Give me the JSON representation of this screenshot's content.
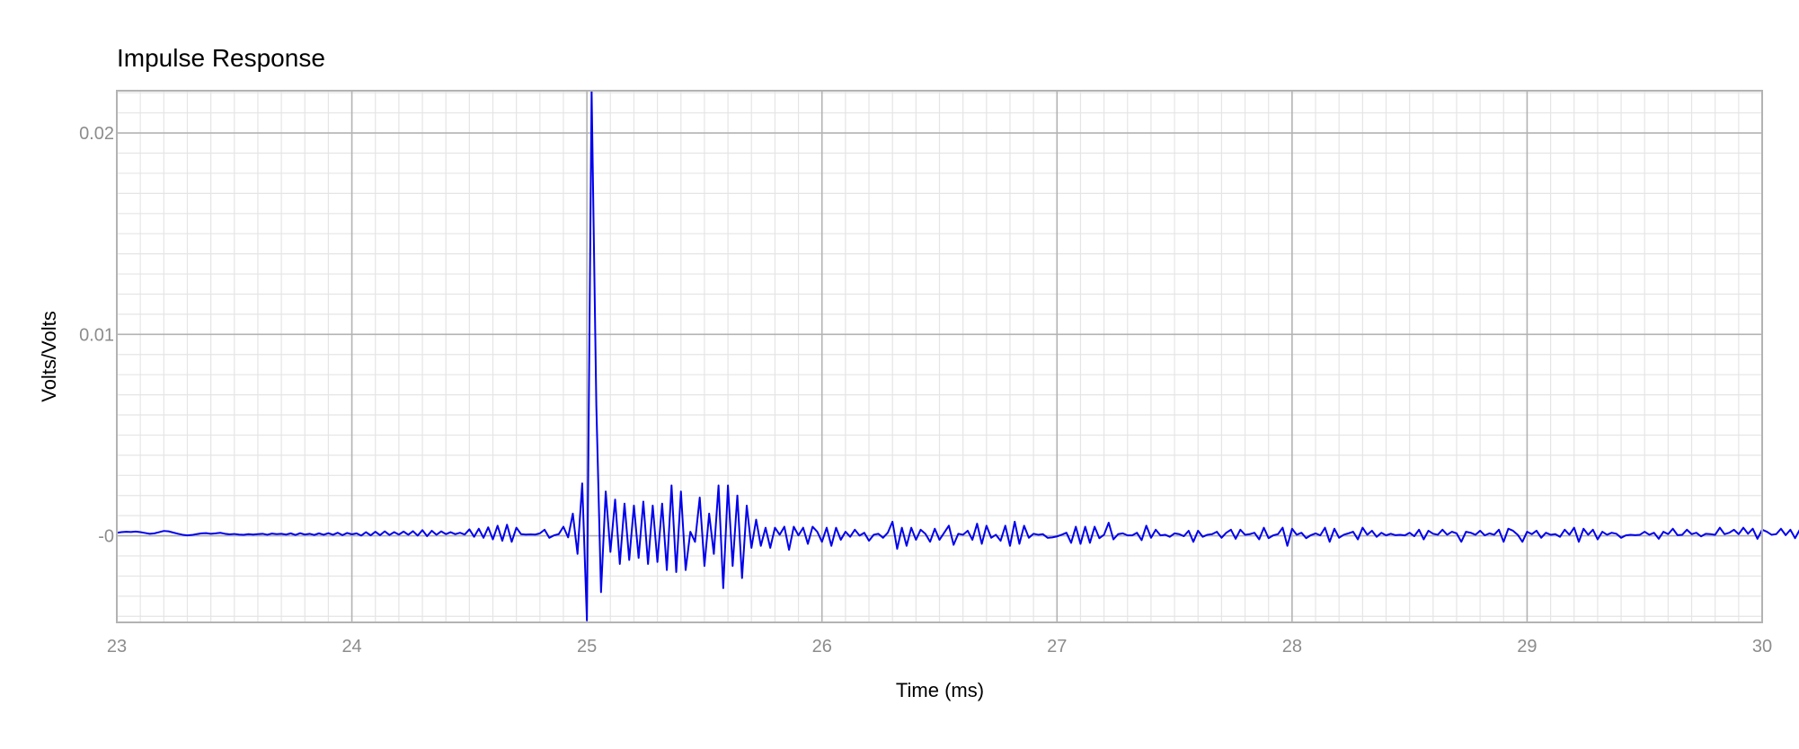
{
  "chart_data": {
    "type": "line",
    "title": "Impulse Response",
    "xlabel": "Time (ms)",
    "ylabel": "Volts/Volts",
    "xlim": [
      23,
      30
    ],
    "ylim": [
      -0.0043,
      0.0221
    ],
    "grid": true,
    "x_ticks": [
      23,
      24,
      25,
      26,
      27,
      28,
      29,
      30
    ],
    "x_tick_labels": [
      "23",
      "24",
      "25",
      "26",
      "27",
      "28",
      "29",
      "30"
    ],
    "y_ticks": [
      0,
      0.01,
      0.02
    ],
    "y_tick_labels": [
      "-0",
      "0.01",
      "0.02"
    ],
    "x_minor_step": 0.1,
    "y_minor_step": 0.001,
    "sample_interval_ms": 0.02,
    "series": [
      {
        "color": "#0000ee",
        "x_start": 23,
        "values": [
          0.00015,
          0.00018,
          0.0002,
          0.00019,
          0.00021,
          0.00018,
          0.00014,
          0.0001,
          0.00012,
          0.00018,
          0.00024,
          0.00022,
          0.00016,
          0.0001,
          5e-05,
          2e-05,
          4e-05,
          8e-05,
          0.00012,
          0.00013,
          0.0001,
          0.00012,
          0.00015,
          0.0001,
          7e-05,
          9e-05,
          6e-05,
          5e-05,
          8e-05,
          6e-05,
          8e-05,
          0.0001,
          5e-05,
          0.00011,
          8e-05,
          0.0001,
          6e-05,
          0.00012,
          4e-05,
          0.00013,
          6e-05,
          0.0001,
          4e-05,
          0.00012,
          5e-05,
          0.00013,
          5e-05,
          0.00015,
          3e-05,
          0.00014,
          7e-05,
          0.00012,
          1e-05,
          0.00018,
          2e-05,
          0.0002,
          3e-05,
          0.00022,
          4e-05,
          0.00018,
          6e-05,
          0.00021,
          5e-05,
          0.00023,
          1e-05,
          0.00028,
          -2e-05,
          0.00025,
          5e-05,
          0.00022,
          8e-05,
          0.00018,
          8e-05,
          0.00015,
          6e-05,
          0.00032,
          -5e-05,
          0.00035,
          -0.0001,
          0.00042,
          -0.00018,
          0.0005,
          -0.00025,
          0.00055,
          -0.0003,
          0.0004,
          8e-05,
          6e-05,
          7e-05,
          6e-05,
          0.00012,
          0.0003,
          -0.0001,
          2e-05,
          8e-05,
          0.00045,
          -8e-05,
          0.0011,
          -0.0009,
          0.0026,
          -0.0042,
          0.0221,
          0.0065,
          -0.0028,
          0.0022,
          -0.0008,
          0.0018,
          -0.0014,
          0.0016,
          -0.0012,
          0.0015,
          -0.0011,
          0.0017,
          -0.0014,
          0.0015,
          -0.0013,
          0.0016,
          -0.0017,
          0.0025,
          -0.0018,
          0.0022,
          -0.0017,
          0.0002,
          -0.0003,
          0.0019,
          -0.0015,
          0.0011,
          -0.0009,
          0.0025,
          -0.0026,
          0.0025,
          -0.0015,
          0.002,
          -0.0021,
          0.0015,
          -0.0006,
          0.0008,
          -0.0005,
          0.0004,
          -0.0006,
          0.0004,
          5e-05,
          0.00045,
          -0.0007,
          0.00045,
          2e-05,
          0.0004,
          -0.0004,
          0.00045,
          0.0002,
          -0.0003,
          0.0004,
          -0.0005,
          0.0004,
          -0.0002,
          0.0002,
          -5e-05,
          0.0003,
          1e-05,
          0.00015,
          -0.00025,
          5e-05,
          0.0001,
          -0.0001,
          0.00015,
          0.0007,
          -0.00065,
          0.0004,
          -0.0005,
          0.0004,
          -0.0002,
          0.0003,
          0.0001,
          -0.0003,
          0.00035,
          -0.0002,
          0.00015,
          0.0005,
          -0.00045,
          0.0001,
          5e-05,
          0.00025,
          -0.0002,
          0.0006,
          -0.0004,
          0.0005,
          -0.0001,
          5e-05,
          -0.00025,
          0.0005,
          -0.0005,
          0.0007,
          -0.0004,
          0.0005,
          -0.0001,
          0.0001,
          5e-05,
          8e-05,
          -0.0001,
          -8e-05,
          -3e-05,
          5e-05,
          0.00015,
          -0.00035,
          0.00045,
          -0.0004,
          0.00045,
          -0.00035,
          0.00045,
          -0.00012,
          5e-05,
          0.00065,
          -0.00018,
          8e-05,
          0.00012,
          2e-05,
          2e-05,
          0.00015,
          -0.00022,
          0.0005,
          -0.0001,
          0.0003,
          2e-05,
          5e-05,
          -5e-05,
          0.00012,
          8e-05,
          -2e-05,
          0.00025,
          -0.0003,
          0.00025,
          -5e-05,
          5e-05,
          8e-05,
          0.0002,
          -0.0001,
          0.00015,
          0.0003,
          -0.00015,
          0.0003,
          5e-05,
          8e-05,
          0.00015,
          -0.00018,
          0.0004,
          -0.00012,
          2e-05,
          8e-05,
          0.0004,
          -0.0005,
          0.00035,
          5e-05,
          0.00015,
          -0.00012,
          3e-05,
          0.00012,
          2e-05,
          0.0004,
          -0.0003,
          0.00035,
          -0.0001,
          5e-05,
          0.00012,
          0.0002,
          -0.00018,
          0.0004,
          5e-05,
          0.00025,
          -5e-05,
          0.00015,
          2e-05,
          0.0001,
          3e-05,
          5e-05,
          2e-05,
          0.00015,
          -2e-05,
          0.0003,
          -0.00018,
          0.00025,
          0.0001,
          5e-05,
          0.0003,
          5e-05,
          0.0002,
          0.00012,
          -0.0003,
          0.0002,
          0.00015,
          5e-05,
          0.00025,
          2e-05,
          0.00012,
          5e-05,
          0.0003,
          -0.0003,
          0.00035,
          0.00025,
          5e-05,
          -0.0003,
          0.0002,
          8e-05,
          0.00025,
          -0.0001,
          0.00015,
          5e-05,
          8e-05,
          -5e-05,
          0.0003,
          5e-05,
          0.0004,
          -0.0003,
          0.00035,
          5e-05,
          0.0003,
          -0.00018,
          0.0002,
          5e-05,
          0.00015,
          0.0001,
          -0.0001,
          2e-05,
          5e-05,
          3e-05,
          5e-05,
          0.0002,
          5e-05,
          0.00015,
          -0.00015,
          0.0002,
          8e-05,
          0.00035,
          3e-05,
          5e-05,
          0.0003,
          8e-05,
          0.00015,
          -3e-05,
          0.0001,
          8e-05,
          5e-05,
          0.0004,
          8e-05,
          0.00015,
          0.0003,
          8e-05,
          0.0004,
          0.0001,
          0.00035,
          -0.00015,
          0.0003,
          0.0002,
          5e-05,
          8e-05,
          0.00035,
          3e-05,
          0.0003,
          -0.00012,
          0.0003,
          8e-05,
          0.0004,
          0.0001,
          0.00045,
          0.0001,
          0.00035,
          0.0001,
          0.0002,
          0.0001
        ]
      }
    ]
  }
}
